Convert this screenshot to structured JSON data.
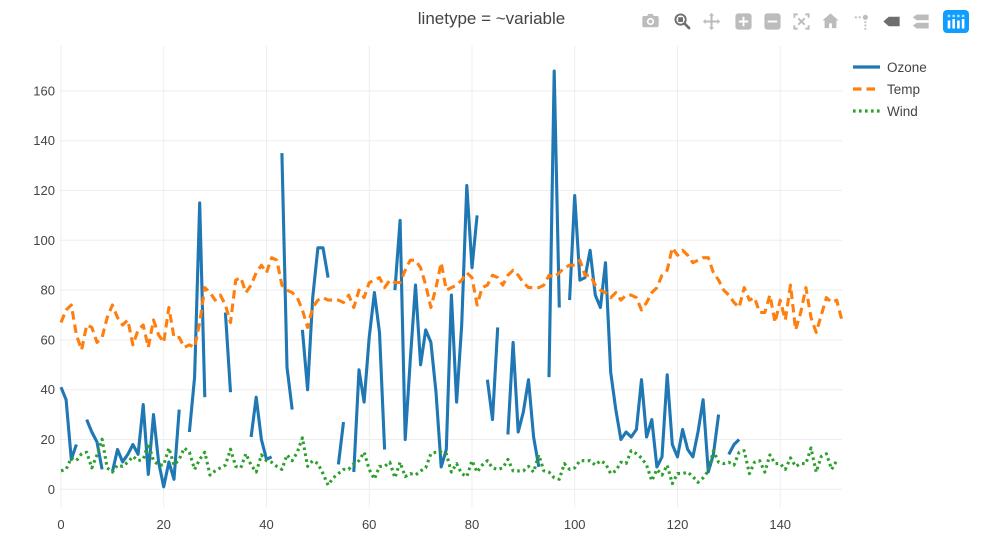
{
  "header": {
    "title": "linetype = ~variable"
  },
  "modebar": {
    "buttons": [
      {
        "name": "camera-icon",
        "active": false
      },
      {
        "name": "zoom-icon",
        "active": true
      },
      {
        "name": "pan-icon",
        "active": false
      },
      {
        "name": "zoom-in-icon",
        "active": false
      },
      {
        "name": "zoom-out-icon",
        "active": false
      },
      {
        "name": "autoscale-icon",
        "active": false
      },
      {
        "name": "home-icon",
        "active": false
      },
      {
        "name": "spikelines-icon",
        "active": false
      },
      {
        "name": "hover-closest-icon",
        "active": true
      },
      {
        "name": "hover-compare-icon",
        "active": false
      },
      {
        "name": "plotly-logo-icon",
        "active": false
      }
    ]
  },
  "legend": {
    "items": [
      {
        "label": "Ozone",
        "color": "#1f77b4",
        "dash": "solid"
      },
      {
        "label": "Temp",
        "color": "#ff7f0e",
        "dash": "dash"
      },
      {
        "label": "Wind",
        "color": "#2ca02c",
        "dash": "dot"
      }
    ]
  },
  "colors": {
    "grid": "#eeeeee",
    "text": "#444444",
    "modebar_inactive": "#bcbcbc",
    "modebar_active": "#6e6e6e",
    "plotly_logo_blue": "#119dff",
    "background": "#ffffff"
  },
  "chart_data": {
    "type": "line",
    "title": "linetype = ~variable",
    "xlabel": "",
    "ylabel": "",
    "x_note": "x = 0-based point index within each trace; Ozone nulls are line gaps",
    "xlim": [
      -0.39,
      152.03
    ],
    "ylim": [
      -7.11,
      178.03
    ],
    "xticks": [
      0,
      20,
      40,
      60,
      80,
      100,
      120,
      140
    ],
    "yticks": [
      0,
      20,
      40,
      60,
      80,
      100,
      120,
      140,
      160
    ],
    "grid": true,
    "legend_position": "top-right-outside",
    "series": [
      {
        "name": "Ozone",
        "color": "#1f77b4",
        "dash": "solid",
        "values": [
          41,
          36,
          12,
          18,
          null,
          28,
          23,
          19,
          8,
          null,
          7,
          16,
          11,
          14,
          18,
          14,
          34,
          6,
          30,
          11,
          1,
          11,
          4,
          32,
          null,
          23,
          45,
          115,
          37,
          null,
          29,
          null,
          71,
          39,
          null,
          23,
          null,
          21,
          37,
          20,
          12,
          13,
          null,
          135,
          49,
          32,
          null,
          64,
          40,
          77,
          97,
          97,
          85,
          null,
          10,
          27,
          null,
          7,
          48,
          35,
          61,
          79,
          63,
          16,
          null,
          80,
          108,
          20,
          52,
          82,
          50,
          64,
          59,
          39,
          9,
          16,
          78,
          35,
          66,
          122,
          89,
          110,
          null,
          44,
          28,
          65,
          null,
          22,
          59,
          23,
          31,
          44,
          21,
          9,
          null,
          45,
          168,
          73,
          null,
          76,
          118,
          84,
          85,
          96,
          78,
          73,
          91,
          47,
          32,
          20,
          23,
          21,
          24,
          44,
          21,
          28,
          9,
          13,
          46,
          18,
          13,
          24,
          16,
          13,
          23,
          36,
          7,
          14,
          30,
          null,
          14,
          18,
          20
        ]
      },
      {
        "name": "Temp",
        "color": "#ff7f0e",
        "dash": "dash",
        "values": [
          67,
          72,
          74,
          62,
          56,
          66,
          65,
          59,
          61,
          69,
          74,
          69,
          66,
          68,
          58,
          64,
          66,
          57,
          68,
          62,
          59,
          73,
          61,
          61,
          57,
          58,
          57,
          67,
          81,
          79,
          76,
          78,
          74,
          67,
          84,
          85,
          79,
          82,
          87,
          90,
          87,
          93,
          92,
          82,
          80,
          79,
          77,
          72,
          65,
          73,
          76,
          77,
          76,
          76,
          76,
          75,
          78,
          73,
          80,
          77,
          83,
          84,
          85,
          81,
          84,
          83,
          83,
          88,
          92,
          92,
          89,
          82,
          73,
          81,
          91,
          80,
          81,
          82,
          84,
          87,
          85,
          74,
          81,
          82,
          86,
          85,
          82,
          86,
          88,
          86,
          83,
          81,
          81,
          81,
          82,
          86,
          85,
          87,
          89,
          90,
          90,
          92,
          86,
          86,
          82,
          80,
          79,
          77,
          79,
          76,
          78,
          78,
          77,
          72,
          75,
          79,
          81,
          86,
          88,
          97,
          94,
          96,
          94,
          91,
          92,
          93,
          93,
          87,
          84,
          80,
          78,
          75,
          73,
          81,
          76,
          77,
          71,
          71,
          78,
          67,
          76,
          68,
          82,
          64,
          71,
          81,
          69,
          63,
          70,
          77,
          75,
          76,
          68
        ]
      },
      {
        "name": "Wind",
        "color": "#2ca02c",
        "dash": "dot",
        "values": [
          7.4,
          8.0,
          12.6,
          11.5,
          14.3,
          14.9,
          8.6,
          13.8,
          20.1,
          8.6,
          6.9,
          9.7,
          9.2,
          10.9,
          13.2,
          11.5,
          12.0,
          18.4,
          11.5,
          9.7,
          9.7,
          16.6,
          9.7,
          12.0,
          16.6,
          14.9,
          8.0,
          12.0,
          14.9,
          5.7,
          7.4,
          8.6,
          9.7,
          16.1,
          9.2,
          8.6,
          14.3,
          9.7,
          6.9,
          13.8,
          11.5,
          10.9,
          9.2,
          8.0,
          13.8,
          11.5,
          14.9,
          20.7,
          9.2,
          11.5,
          10.3,
          6.3,
          1.7,
          4.6,
          6.3,
          8.0,
          8.0,
          10.3,
          11.5,
          14.9,
          8.0,
          4.1,
          9.2,
          9.2,
          10.9,
          4.6,
          10.9,
          5.1,
          6.3,
          5.7,
          7.4,
          8.6,
          14.3,
          14.9,
          14.9,
          14.3,
          6.9,
          10.3,
          6.3,
          5.1,
          11.5,
          6.9,
          9.7,
          11.5,
          8.6,
          8.0,
          8.6,
          12.0,
          7.4,
          7.4,
          7.4,
          9.2,
          6.9,
          13.8,
          7.4,
          6.9,
          4.6,
          4.0,
          10.3,
          8.0,
          8.6,
          11.5,
          11.5,
          11.5,
          9.7,
          11.5,
          10.3,
          6.3,
          7.4,
          10.9,
          10.3,
          15.5,
          14.3,
          12.6,
          9.7,
          3.4,
          8.0,
          5.7,
          9.7,
          2.3,
          6.3,
          6.3,
          6.9,
          5.1,
          2.8,
          4.6,
          7.4,
          15.5,
          10.9,
          10.3,
          10.9,
          9.7,
          14.9,
          15.5,
          6.3,
          10.9,
          11.5,
          6.9,
          13.8,
          10.3,
          10.3,
          8.0,
          12.6,
          9.2,
          10.3,
          10.3,
          16.6,
          6.9,
          13.2,
          14.3,
          8.0,
          11.5
        ]
      }
    ]
  }
}
